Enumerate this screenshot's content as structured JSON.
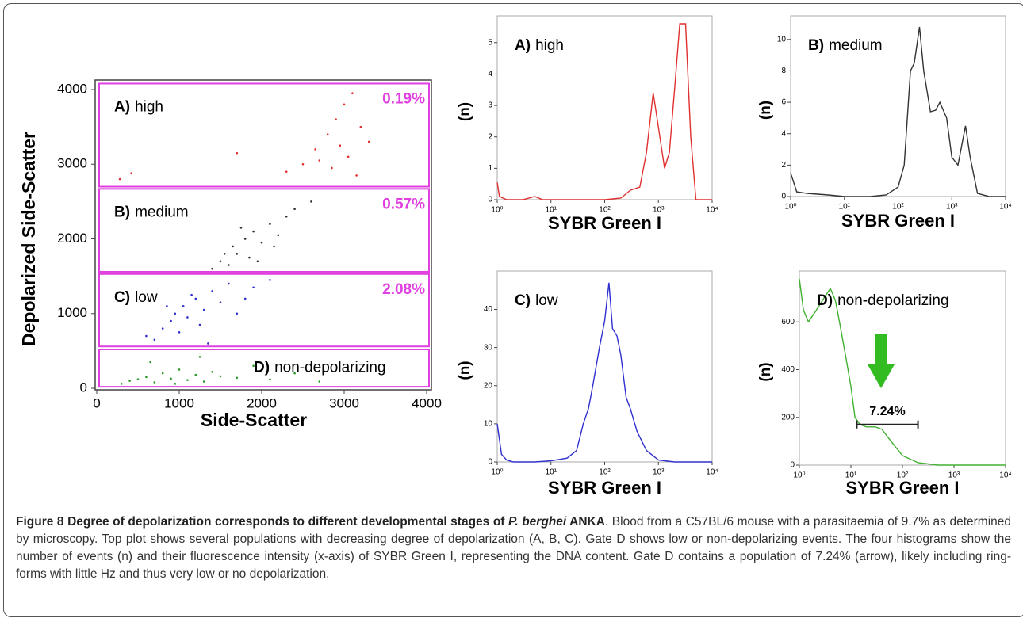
{
  "chart_data": [
    {
      "type": "scatter",
      "xlabel": "Side-Scatter",
      "ylabel": "Depolarized Side-Scatter",
      "xlim": [
        0,
        4000
      ],
      "ylim": [
        0,
        4000
      ],
      "xticks": [
        0,
        1000,
        2000,
        3000,
        4000
      ],
      "yticks": [
        0,
        1000,
        2000,
        3000,
        4000
      ],
      "gate_color": "#e040e0",
      "gates": [
        {
          "letter": "A)",
          "name": "high",
          "percent": "0.19%",
          "range": [
            2700,
            4080
          ]
        },
        {
          "letter": "B)",
          "name": "medium",
          "percent": "0.57%",
          "range": [
            1560,
            2670
          ]
        },
        {
          "letter": "C)",
          "name": "low",
          "percent": "2.08%",
          "range": [
            560,
            1530
          ]
        },
        {
          "letter": "D)",
          "name": "non-depolarizing",
          "range": [
            20,
            520
          ]
        }
      ],
      "series": [
        {
          "color": "#e03030",
          "x": [
            2300,
            2500,
            2650,
            2700,
            2800,
            2850,
            2900,
            2950,
            3000,
            3050,
            3100,
            3200,
            3300,
            3150,
            1700,
            280,
            420
          ],
          "y": [
            2900,
            3000,
            3200,
            3050,
            3400,
            2950,
            3600,
            3250,
            3800,
            3100,
            3950,
            3500,
            3300,
            2850,
            3150,
            2800,
            2880
          ]
        },
        {
          "color": "#333333",
          "x": [
            1400,
            1500,
            1600,
            1650,
            1700,
            1800,
            1850,
            1900,
            2000,
            2100,
            2200,
            2300,
            2400,
            2600,
            1550,
            1750,
            1950,
            2150
          ],
          "y": [
            1600,
            1700,
            1650,
            1900,
            1800,
            2000,
            1750,
            2100,
            1950,
            2200,
            2050,
            2300,
            2400,
            2500,
            1800,
            2150,
            1700,
            1900
          ]
        },
        {
          "color": "#3030d0",
          "x": [
            600,
            700,
            800,
            900,
            950,
            1000,
            1050,
            1100,
            1200,
            1250,
            1300,
            1400,
            1500,
            1600,
            1700,
            1800,
            1900,
            2100,
            850,
            1150,
            1350
          ],
          "y": [
            700,
            650,
            800,
            900,
            1000,
            750,
            1100,
            950,
            1200,
            850,
            1050,
            1300,
            1150,
            1400,
            1000,
            1200,
            1350,
            1450,
            1100,
            1250,
            600
          ]
        },
        {
          "color": "#2a9a2a",
          "x": [
            300,
            400,
            500,
            600,
            700,
            800,
            900,
            1000,
            1100,
            1200,
            1300,
            1400,
            1500,
            1700,
            1900,
            2100,
            2400,
            2700,
            650,
            950,
            1250
          ],
          "y": [
            60,
            100,
            120,
            150,
            80,
            200,
            130,
            250,
            110,
            180,
            90,
            220,
            160,
            140,
            300,
            120,
            200,
            90,
            350,
            60,
            420
          ]
        }
      ]
    },
    {
      "type": "line",
      "letter": "A)",
      "name": "high",
      "xlabel": "SYBR Green I",
      "ylabel": "(n)",
      "log_x": true,
      "color": "#e03030",
      "xlim": [
        1,
        10000
      ],
      "ylim": [
        0,
        5.6
      ],
      "yticks": [
        0,
        1,
        2,
        3,
        4,
        5
      ],
      "xticks": [
        {
          "value": 1,
          "label": "10⁰"
        },
        {
          "value": 10,
          "label": "10¹"
        },
        {
          "value": 100,
          "label": "10²"
        },
        {
          "value": 1000,
          "label": "10³"
        },
        {
          "value": 10000,
          "label": "10⁴"
        }
      ],
      "x": [
        1,
        1.1,
        1.5,
        3,
        5,
        7,
        20,
        100,
        200,
        300,
        450,
        600,
        800,
        1000,
        1300,
        1600,
        2000,
        2500,
        3200,
        4000,
        5000,
        10000
      ],
      "values": [
        0.55,
        0.1,
        0,
        0,
        0.1,
        0,
        0,
        0,
        0.05,
        0.3,
        0.4,
        1.5,
        3.4,
        2.3,
        1.0,
        1.5,
        3.5,
        5.6,
        5.6,
        2.0,
        0,
        0
      ]
    },
    {
      "type": "line",
      "letter": "B)",
      "name": "medium",
      "xlabel": "SYBR Green I",
      "ylabel": "(n)",
      "log_x": true,
      "color": "#333333",
      "xlim": [
        1,
        10000
      ],
      "ylim": [
        0,
        11
      ],
      "yticks": [
        0,
        2,
        4,
        6,
        8,
        10
      ],
      "xticks": [
        {
          "value": 1,
          "label": "10⁰"
        },
        {
          "value": 10,
          "label": "10¹"
        },
        {
          "value": 100,
          "label": "10²"
        },
        {
          "value": 1000,
          "label": "10³"
        },
        {
          "value": 10000,
          "label": "10⁴"
        }
      ],
      "x": [
        1,
        1.3,
        2,
        5,
        10,
        30,
        60,
        100,
        130,
        170,
        200,
        250,
        300,
        400,
        500,
        600,
        800,
        1000,
        1300,
        1800,
        2200,
        3000,
        5000,
        10000
      ],
      "values": [
        1.5,
        0.3,
        0.2,
        0.1,
        0,
        0,
        0.1,
        0.6,
        2,
        8,
        8.5,
        10.8,
        8,
        5.4,
        5.5,
        6,
        5,
        2.5,
        2,
        4.5,
        2.5,
        0.2,
        0,
        0
      ]
    },
    {
      "type": "line",
      "letter": "C)",
      "name": "low",
      "xlabel": "SYBR Green I",
      "ylabel": "(n)",
      "log_x": true,
      "color": "#3030d0",
      "xlim": [
        1,
        10000
      ],
      "ylim": [
        0,
        48
      ],
      "yticks": [
        0,
        10,
        20,
        30,
        40
      ],
      "xticks": [
        {
          "value": 1,
          "label": "10⁰"
        },
        {
          "value": 10,
          "label": "10¹"
        },
        {
          "value": 100,
          "label": "10²"
        },
        {
          "value": 1000,
          "label": "10³"
        },
        {
          "value": 10000,
          "label": "10⁴"
        }
      ],
      "x": [
        1,
        1.2,
        1.5,
        2,
        5,
        10,
        20,
        30,
        40,
        50,
        60,
        80,
        100,
        120,
        140,
        170,
        200,
        250,
        300,
        400,
        600,
        1000,
        2000,
        10000
      ],
      "values": [
        10,
        2,
        0.5,
        0,
        0,
        0.3,
        1,
        3,
        10,
        14,
        20,
        30,
        37,
        47,
        35,
        33,
        28,
        17,
        14,
        8,
        3,
        0.5,
        0,
        0
      ]
    },
    {
      "type": "line",
      "letter": "D)",
      "name": "non-depolarizing",
      "xlabel": "SYBR Green I",
      "ylabel": "(n)",
      "log_x": true,
      "color": "#40b030",
      "xlim": [
        1,
        10000
      ],
      "ylim": [
        0,
        780
      ],
      "yticks": [
        0,
        200,
        400,
        600
      ],
      "xticks": [
        {
          "value": 1,
          "label": "10⁰"
        },
        {
          "value": 10,
          "label": "10¹"
        },
        {
          "value": 100,
          "label": "10²"
        },
        {
          "value": 1000,
          "label": "10³"
        },
        {
          "value": 10000,
          "label": "10⁴"
        }
      ],
      "x": [
        1,
        1.2,
        1.5,
        2,
        3,
        4,
        5,
        6,
        8,
        10,
        12,
        15,
        20,
        30,
        40,
        60,
        100,
        200,
        500,
        1000,
        10000
      ],
      "values": [
        780,
        650,
        600,
        640,
        700,
        740,
        690,
        600,
        450,
        330,
        200,
        170,
        160,
        160,
        150,
        100,
        40,
        10,
        0,
        0,
        0
      ],
      "bracket": {
        "label": "7.24%",
        "x": [
          13,
          200
        ],
        "y": 170
      }
    }
  ],
  "caption": {
    "label": "Figure 8",
    "title_a": "Degree of depolarization corresponds to different developmental stages of ",
    "title_italic": "P. berghei",
    "title_b": " ANKA",
    "text": ". Blood from a C57BL/6 mouse with a parasitaemia of 9.7% as determined by microscopy. Top plot shows several populations with decreasing degree of depolarization (A, B, C). Gate D shows low or non-depolarizing events. The four histograms show the number of events (n) and their fluorescence intensity (x-axis) of SYBR Green I, representing the DNA content. Gate D contains a population of 7.24% (arrow), likely including ring-forms with little Hz and thus very low or no depolarization."
  }
}
